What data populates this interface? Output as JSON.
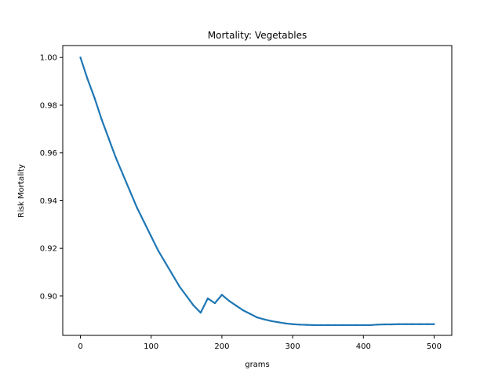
{
  "chart_data": {
    "type": "scatter",
    "title": "Mortality: Vegetables",
    "xlabel": "grams",
    "ylabel": "Risk Mortality",
    "xlim": [
      -25,
      525
    ],
    "ylim": [
      0.8835,
      1.005
    ],
    "xticks": [
      0,
      100,
      200,
      300,
      400,
      500
    ],
    "yticks": [
      0.9,
      0.92,
      0.94,
      0.96,
      0.98,
      1.0
    ],
    "xtick_labels": [
      "0",
      "100",
      "200",
      "300",
      "400",
      "500"
    ],
    "ytick_labels": [
      "0.90",
      "0.92",
      "0.94",
      "0.96",
      "0.98",
      "1.00"
    ],
    "grid": false,
    "series": [
      {
        "color": "#1f77b4",
        "x": [
          0,
          10,
          20,
          30,
          40,
          50,
          60,
          70,
          80,
          90,
          100,
          110,
          120,
          130,
          140,
          150,
          160,
          170,
          180,
          190,
          200,
          210,
          220,
          230,
          240,
          250,
          260,
          270,
          280,
          290,
          300,
          310,
          320,
          330,
          340,
          350,
          360,
          370,
          380,
          390,
          400,
          410,
          420,
          430,
          440,
          450,
          460,
          470,
          480,
          490,
          500
        ],
        "y": [
          1.0,
          0.991,
          0.983,
          0.974,
          0.966,
          0.958,
          0.951,
          0.944,
          0.937,
          0.931,
          0.925,
          0.919,
          0.914,
          0.909,
          0.904,
          0.9,
          0.896,
          0.893,
          0.899,
          0.897,
          0.9005,
          0.898,
          0.896,
          0.894,
          0.8925,
          0.891,
          0.8902,
          0.8895,
          0.889,
          0.8885,
          0.8882,
          0.888,
          0.8879,
          0.8878,
          0.8878,
          0.8878,
          0.8878,
          0.8878,
          0.8878,
          0.8878,
          0.8878,
          0.8878,
          0.888,
          0.8881,
          0.8881,
          0.8882,
          0.8882,
          0.8882,
          0.8882,
          0.8882,
          0.8882
        ]
      }
    ]
  }
}
